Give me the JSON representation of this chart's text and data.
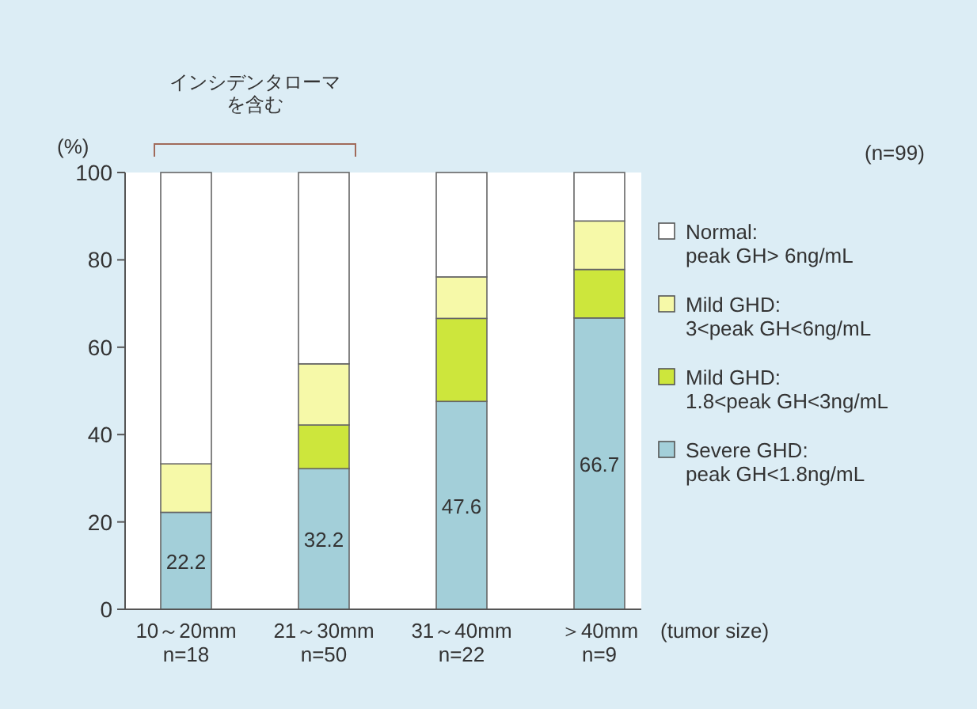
{
  "chart_data": {
    "type": "bar",
    "stacked": true,
    "ylabel": "(%)",
    "xlabel": "(tumor size)",
    "annotations": [
      "インシデンタローマ",
      "を含む",
      "(n=99)"
    ],
    "categories": [
      "10～20mm\nn=18",
      "21～30mm\nn=50",
      "31～40mm\nn=22",
      "＞40mm\nn=9"
    ],
    "series": [
      {
        "name": "Severe GHD:\npeak GH<1.8ng/mL",
        "color": "#a3cfd9",
        "values": [
          22.2,
          32.2,
          47.6,
          66.7
        ],
        "value_labels": [
          "22.2",
          "32.2",
          "47.6",
          "66.7"
        ]
      },
      {
        "name": "Mild GHD:\n1.8<peak GH<3ng/mL",
        "color": "#cde63c",
        "values": [
          0,
          10.0,
          19.0,
          11.1
        ]
      },
      {
        "name": "Mild GHD:\n3<peak GH<6ng/mL",
        "color": "#f6f9a8",
        "values": [
          11.1,
          14.0,
          9.5,
          11.1
        ]
      },
      {
        "name": "Normal:\npeak GH> 6ng/mL",
        "color": "#ffffff",
        "values": [
          66.7,
          43.8,
          23.9,
          11.1
        ]
      }
    ],
    "ylim": [
      0,
      100
    ],
    "yticks": [
      0,
      20,
      40,
      60,
      80,
      100
    ],
    "grid": false,
    "legend": "right"
  }
}
